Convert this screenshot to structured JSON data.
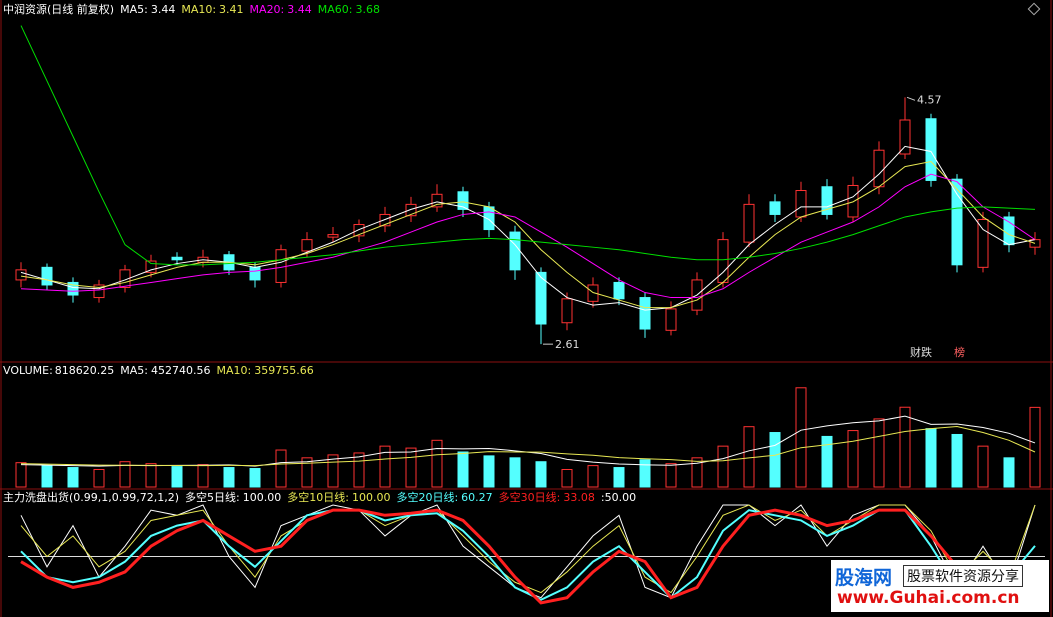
{
  "chart_data": [
    {
      "type": "candlestick",
      "title": "中润资源(日线 前复权)",
      "up_color": "#ff3232",
      "down_color": "#54ffff",
      "ylim": [
        2.5,
        5.2
      ],
      "open": [
        3.12,
        3.22,
        3.1,
        2.98,
        3.06,
        3.18,
        3.3,
        3.26,
        3.32,
        3.22,
        3.1,
        3.35,
        3.46,
        3.47,
        3.55,
        3.63,
        3.7,
        3.82,
        3.7,
        3.5,
        3.18,
        2.78,
        2.95,
        3.1,
        2.98,
        2.72,
        2.88,
        3.1,
        3.42,
        3.74,
        3.62,
        3.86,
        3.62,
        3.86,
        4.12,
        4.4,
        3.92,
        3.22,
        3.62,
        3.38
      ],
      "high": [
        3.26,
        3.25,
        3.14,
        3.12,
        3.24,
        3.32,
        3.34,
        3.36,
        3.35,
        3.26,
        3.4,
        3.5,
        3.54,
        3.6,
        3.7,
        3.78,
        3.88,
        3.86,
        3.74,
        3.55,
        3.22,
        3.02,
        3.14,
        3.14,
        3.02,
        2.95,
        3.18,
        3.5,
        3.8,
        3.8,
        3.9,
        3.92,
        3.94,
        4.22,
        4.57,
        4.44,
        3.96,
        3.66,
        3.66,
        3.5
      ],
      "low": [
        3.06,
        3.04,
        2.94,
        2.94,
        3.02,
        3.14,
        3.24,
        3.22,
        3.16,
        3.06,
        3.06,
        3.3,
        3.42,
        3.42,
        3.5,
        3.58,
        3.66,
        3.62,
        3.46,
        3.12,
        2.61,
        2.72,
        2.9,
        2.92,
        2.66,
        2.68,
        2.84,
        3.06,
        3.38,
        3.58,
        3.58,
        3.6,
        3.58,
        3.8,
        4.08,
        3.86,
        3.18,
        3.18,
        3.34,
        3.32
      ],
      "close": [
        3.2,
        3.08,
        3.0,
        3.08,
        3.2,
        3.27,
        3.28,
        3.3,
        3.2,
        3.12,
        3.36,
        3.44,
        3.48,
        3.56,
        3.64,
        3.72,
        3.8,
        3.68,
        3.52,
        3.2,
        2.77,
        2.97,
        3.08,
        2.97,
        2.73,
        2.89,
        3.12,
        3.44,
        3.72,
        3.64,
        3.83,
        3.64,
        3.87,
        4.15,
        4.39,
        3.91,
        3.24,
        3.6,
        3.4,
        3.44
      ],
      "series": [
        {
          "name": "MA5:",
          "last": 3.44,
          "color": "#ffffff",
          "values": [
            3.18,
            3.12,
            3.06,
            3.05,
            3.12,
            3.2,
            3.25,
            3.28,
            3.26,
            3.22,
            3.26,
            3.34,
            3.42,
            3.52,
            3.6,
            3.68,
            3.74,
            3.7,
            3.6,
            3.4,
            3.14,
            2.98,
            2.92,
            2.94,
            2.88,
            2.9,
            3.0,
            3.18,
            3.4,
            3.56,
            3.7,
            3.7,
            3.78,
            3.96,
            4.18,
            4.14,
            3.8,
            3.52,
            3.4,
            3.44
          ]
        },
        {
          "name": "MA10:",
          "last": 3.41,
          "color": "#e8e854",
          "values": [
            3.15,
            3.12,
            3.08,
            3.06,
            3.1,
            3.16,
            3.22,
            3.26,
            3.26,
            3.24,
            3.28,
            3.33,
            3.4,
            3.48,
            3.56,
            3.64,
            3.72,
            3.74,
            3.7,
            3.58,
            3.36,
            3.18,
            3.02,
            2.96,
            2.9,
            2.9,
            2.96,
            3.1,
            3.3,
            3.48,
            3.62,
            3.68,
            3.74,
            3.86,
            4.02,
            4.06,
            3.84,
            3.62,
            3.48,
            3.41
          ]
        },
        {
          "name": "MA20:",
          "last": 3.44,
          "color": "#ff00ff",
          "values": [
            3.05,
            3.04,
            3.03,
            3.04,
            3.07,
            3.1,
            3.13,
            3.16,
            3.18,
            3.19,
            3.22,
            3.26,
            3.3,
            3.36,
            3.42,
            3.5,
            3.58,
            3.64,
            3.66,
            3.62,
            3.5,
            3.38,
            3.25,
            3.12,
            3.02,
            2.98,
            2.98,
            3.05,
            3.18,
            3.3,
            3.42,
            3.5,
            3.58,
            3.7,
            3.86,
            3.96,
            3.9,
            3.7,
            3.58,
            3.44
          ]
        },
        {
          "name": "MA60:",
          "last": 3.68,
          "color": "#00e000",
          "values": [
            5.14,
            4.7,
            4.26,
            3.82,
            3.4,
            3.25,
            3.24,
            3.24,
            3.25,
            3.26,
            3.28,
            3.3,
            3.32,
            3.35,
            3.38,
            3.4,
            3.42,
            3.44,
            3.45,
            3.44,
            3.42,
            3.4,
            3.38,
            3.36,
            3.33,
            3.3,
            3.28,
            3.28,
            3.3,
            3.33,
            3.37,
            3.42,
            3.48,
            3.55,
            3.62,
            3.66,
            3.69,
            3.7,
            3.69,
            3.68
          ]
        }
      ],
      "annotations": [
        {
          "text": "财跌"
        },
        {
          "text": "榜"
        }
      ]
    },
    {
      "type": "bar",
      "title": "VOLUME:",
      "ylim": [
        0,
        1100000
      ],
      "values": [
        250000,
        220000,
        200000,
        180000,
        260000,
        240000,
        210000,
        230000,
        200000,
        190000,
        380000,
        300000,
        330000,
        350000,
        420000,
        400000,
        480000,
        360000,
        320000,
        300000,
        260000,
        180000,
        220000,
        200000,
        280000,
        240000,
        300000,
        420000,
        620000,
        560000,
        1020000,
        520000,
        580000,
        700000,
        820000,
        600000,
        540000,
        420000,
        300000,
        818620.25
      ],
      "series": [
        {
          "name": "MA5:",
          "last": 452740.56,
          "color": "#ffffff",
          "values": [
            230000,
            225000,
            220000,
            215000,
            222000,
            220000,
            222000,
            224000,
            228000,
            214000,
            250000,
            260000,
            286000,
            310000,
            356000,
            360000,
            396000,
            392000,
            396000,
            372000,
            344000,
            284000,
            256000,
            236000,
            228000,
            224000,
            244000,
            292000,
            372000,
            428000,
            584000,
            628000,
            660000,
            680000,
            728000,
            644000,
            648000,
            612000,
            552000,
            452740.56
          ]
        },
        {
          "name": "MA10:",
          "last": 359755.66,
          "color": "#e8e854",
          "values": [
            240000,
            235000,
            230000,
            225000,
            224000,
            222000,
            221000,
            220000,
            222000,
            220000,
            236000,
            244000,
            256000,
            266000,
            288000,
            305000,
            332000,
            345000,
            364000,
            360000,
            358000,
            340000,
            326000,
            302000,
            290000,
            282000,
            264000,
            270000,
            300000,
            326000,
            404000,
            434000,
            470000,
            520000,
            570000,
            600000,
            622000,
            560000,
            480000,
            359755.66
          ]
        }
      ]
    },
    {
      "type": "line",
      "title": "主力洗盘出货(0.99,1,0.99,72,1,2)",
      "ylim": [
        0,
        100
      ],
      "reference": {
        "value": 50,
        "label": ":50.00"
      },
      "series": [
        {
          "name": "多空5日线:",
          "last": {
            "value": 100,
            "label": "100.00"
          },
          "color": "#ffffff",
          "width": 1,
          "values": [
            90,
            40,
            80,
            30,
            60,
            95,
            90,
            100,
            50,
            20,
            80,
            90,
            100,
            95,
            70,
            90,
            100,
            60,
            40,
            20,
            10,
            40,
            70,
            90,
            20,
            10,
            60,
            100,
            100,
            80,
            100,
            60,
            90,
            100,
            100,
            70,
            20,
            60,
            20,
            100
          ]
        },
        {
          "name": "多空10日线:",
          "last": {
            "value": 100,
            "label": "100.00"
          },
          "color": "#e8e854",
          "width": 1,
          "values": [
            80,
            50,
            70,
            40,
            55,
            85,
            90,
            95,
            60,
            30,
            70,
            85,
            95,
            95,
            80,
            90,
            95,
            70,
            45,
            25,
            15,
            35,
            60,
            80,
            30,
            15,
            50,
            90,
            100,
            85,
            95,
            70,
            85,
            100,
            100,
            75,
            30,
            55,
            30,
            100
          ]
        },
        {
          "name": "多空20日线:",
          "last": {
            "value": 60.27,
            "label": "60.27"
          },
          "color": "#54ffff",
          "width": 2,
          "values": [
            55,
            30,
            25,
            30,
            45,
            70,
            80,
            85,
            60,
            40,
            65,
            90,
            95,
            95,
            85,
            90,
            92,
            75,
            50,
            20,
            8,
            20,
            45,
            60,
            35,
            10,
            30,
            75,
            95,
            90,
            85,
            70,
            80,
            95,
            95,
            60,
            20,
            40,
            30,
            60.27
          ]
        },
        {
          "name": "多空30日线:",
          "last": {
            "value": 33.08,
            "label": "33.08"
          },
          "color": "#ff2020",
          "width": 3,
          "values": [
            45,
            30,
            20,
            25,
            35,
            60,
            75,
            85,
            70,
            55,
            60,
            85,
            95,
            95,
            90,
            92,
            95,
            85,
            60,
            30,
            5,
            10,
            35,
            55,
            45,
            10,
            20,
            60,
            90,
            95,
            90,
            80,
            85,
            95,
            95,
            70,
            40,
            45,
            40,
            33.08
          ]
        }
      ]
    }
  ],
  "watermark": {
    "logo_name": "股海网",
    "logo_slogan": "股票软件资源分享",
    "logo_url": "www.Guhai.com.cn"
  }
}
